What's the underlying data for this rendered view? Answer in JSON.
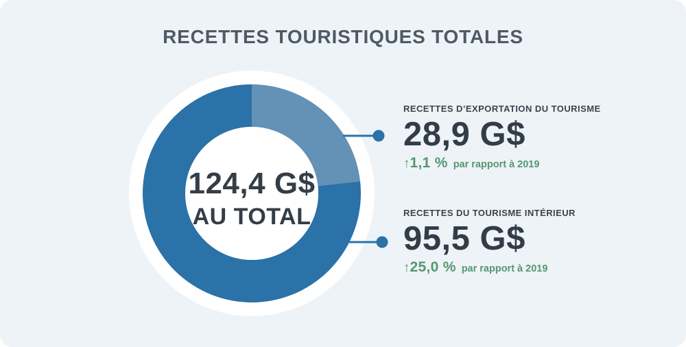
{
  "title": "RECETTES TOURISTIQUES TOTALES",
  "colors": {
    "page_background": "#ffffff",
    "card_background": "#eef3f8",
    "ring_white": "#ffffff",
    "accent_dark_blue": "#2a72a8",
    "accent_light_blue": "#6491b6",
    "title_text": "#4e5a65",
    "value_text": "#343e48",
    "change_green": "#55976f"
  },
  "chart_data": {
    "type": "pie",
    "donut": true,
    "title": "RECETTES TOURISTIQUES TOTALES",
    "center_value": "124,4 G$",
    "center_label": "AU TOTAL",
    "total_value": 124.4,
    "unit": "G$",
    "start_angle_deg": 0,
    "direction": "clockwise",
    "legend_position": "right-callouts",
    "segments": [
      {
        "label": "RECETTES D’EXPORTATION DU TOURISME",
        "value": 28.9,
        "value_display": "28,9 G$",
        "change_arrow": "↑",
        "change": "1,1 %",
        "change_note": "par rapport à 2019",
        "color": "#6491b6"
      },
      {
        "label": "RECETTES DU TOURISME INTÉRIEUR",
        "value": 95.5,
        "value_display": "95,5 G$",
        "change_arrow": "↑",
        "change": "25,0 %",
        "change_note": "par rapport à 2019",
        "color": "#2a72a8"
      }
    ]
  }
}
